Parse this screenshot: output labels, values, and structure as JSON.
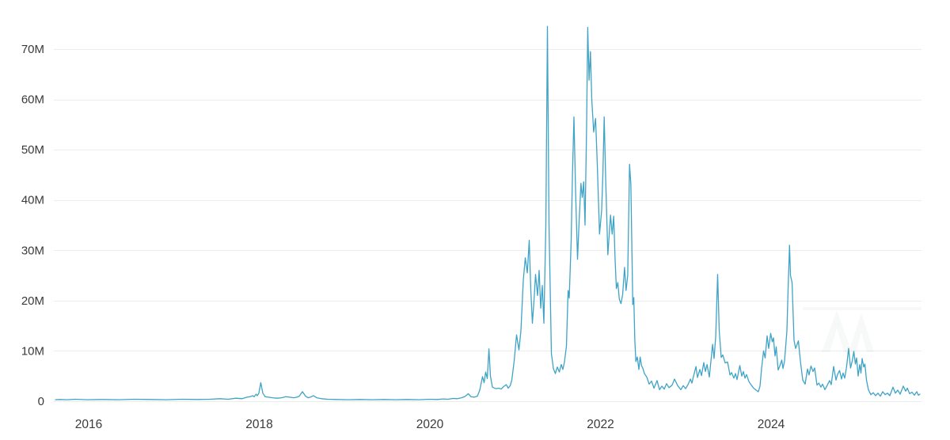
{
  "chart_data": {
    "type": "line",
    "title": "",
    "xlabel": "",
    "ylabel": "",
    "legend": "none",
    "grid": "horizontal-only",
    "xlim": [
      2015.61,
      2025.78
    ],
    "ylim": [
      0,
      74.5
    ],
    "x_ticks": {
      "values": [
        2016,
        2018,
        2020,
        2022,
        2024
      ],
      "labels": [
        "2016",
        "2018",
        "2020",
        "2022",
        "2024"
      ]
    },
    "y_ticks": {
      "values": [
        0,
        10,
        20,
        30,
        40,
        50,
        60,
        70
      ],
      "labels": [
        "0",
        "10M",
        "20M",
        "30M",
        "40M",
        "50M",
        "60M",
        "70M"
      ]
    },
    "y_unit": "millions",
    "series": [
      {
        "name": "value",
        "color": "#3fa3c6",
        "points": [
          [
            2015.61,
            0.3
          ],
          [
            2015.657,
            0.35
          ],
          [
            2015.749,
            0.3
          ],
          [
            2015.842,
            0.4
          ],
          [
            2015.981,
            0.3
          ],
          [
            2016.167,
            0.35
          ],
          [
            2016.353,
            0.3
          ],
          [
            2016.538,
            0.4
          ],
          [
            2016.724,
            0.35
          ],
          [
            2016.91,
            0.3
          ],
          [
            2017.095,
            0.4
          ],
          [
            2017.281,
            0.35
          ],
          [
            2017.42,
            0.4
          ],
          [
            2017.541,
            0.5
          ],
          [
            2017.633,
            0.4
          ],
          [
            2017.726,
            0.6
          ],
          [
            2017.8,
            0.5
          ],
          [
            2017.856,
            0.8
          ],
          [
            2017.893,
            0.9
          ],
          [
            2017.921,
            1.1
          ],
          [
            2017.94,
            0.9
          ],
          [
            2017.963,
            1.4
          ],
          [
            2017.977,
            1.1
          ],
          [
            2017.995,
            1.6
          ],
          [
            2018.018,
            3.7
          ],
          [
            2018.042,
            1.6
          ],
          [
            2018.07,
            0.9
          ],
          [
            2018.107,
            0.8
          ],
          [
            2018.153,
            0.7
          ],
          [
            2018.209,
            0.6
          ],
          [
            2018.264,
            0.7
          ],
          [
            2018.311,
            0.9
          ],
          [
            2018.357,
            0.8
          ],
          [
            2018.404,
            0.7
          ],
          [
            2018.441,
            0.8
          ],
          [
            2018.469,
            1.0
          ],
          [
            2018.506,
            1.9
          ],
          [
            2018.543,
            1.0
          ],
          [
            2018.571,
            0.7
          ],
          [
            2018.599,
            0.8
          ],
          [
            2018.636,
            1.1
          ],
          [
            2018.673,
            0.7
          ],
          [
            2018.729,
            0.5
          ],
          [
            2018.803,
            0.4
          ],
          [
            2018.905,
            0.35
          ],
          [
            2019.044,
            0.3
          ],
          [
            2019.183,
            0.35
          ],
          [
            2019.323,
            0.3
          ],
          [
            2019.462,
            0.35
          ],
          [
            2019.601,
            0.3
          ],
          [
            2019.74,
            0.35
          ],
          [
            2019.879,
            0.3
          ],
          [
            2019.991,
            0.4
          ],
          [
            2020.084,
            0.35
          ],
          [
            2020.158,
            0.45
          ],
          [
            2020.213,
            0.4
          ],
          [
            2020.269,
            0.55
          ],
          [
            2020.325,
            0.5
          ],
          [
            2020.371,
            0.7
          ],
          [
            2020.408,
            0.9
          ],
          [
            2020.45,
            1.5
          ],
          [
            2020.483,
            0.9
          ],
          [
            2020.52,
            0.8
          ],
          [
            2020.557,
            1.0
          ],
          [
            2020.585,
            2.2
          ],
          [
            2020.617,
            4.9
          ],
          [
            2020.636,
            3.7
          ],
          [
            2020.654,
            5.8
          ],
          [
            2020.673,
            4.5
          ],
          [
            2020.692,
            10.4
          ],
          [
            2020.71,
            5.0
          ],
          [
            2020.733,
            2.8
          ],
          [
            2020.77,
            2.5
          ],
          [
            2020.808,
            2.6
          ],
          [
            2020.835,
            2.4
          ],
          [
            2020.863,
            2.9
          ],
          [
            2020.896,
            3.3
          ],
          [
            2020.919,
            2.6
          ],
          [
            2020.942,
            3.1
          ],
          [
            2020.961,
            4.2
          ],
          [
            2020.988,
            8.0
          ],
          [
            2021.016,
            13.2
          ],
          [
            2021.044,
            10.2
          ],
          [
            2021.067,
            14.0
          ],
          [
            2021.095,
            24.0
          ],
          [
            2021.118,
            28.5
          ],
          [
            2021.142,
            25.5
          ],
          [
            2021.165,
            32.0
          ],
          [
            2021.183,
            22.0
          ],
          [
            2021.202,
            15.5
          ],
          [
            2021.22,
            20.0
          ],
          [
            2021.239,
            25.2
          ],
          [
            2021.262,
            21.0
          ],
          [
            2021.281,
            26.0
          ],
          [
            2021.299,
            18.5
          ],
          [
            2021.318,
            23.0
          ],
          [
            2021.336,
            15.5
          ],
          [
            2021.36,
            35.0
          ],
          [
            2021.378,
            74.5
          ],
          [
            2021.397,
            35.0
          ],
          [
            2021.425,
            9.5
          ],
          [
            2021.448,
            6.5
          ],
          [
            2021.471,
            5.5
          ],
          [
            2021.494,
            6.8
          ],
          [
            2021.517,
            5.8
          ],
          [
            2021.541,
            7.3
          ],
          [
            2021.559,
            6.3
          ],
          [
            2021.578,
            7.8
          ],
          [
            2021.601,
            11.0
          ],
          [
            2021.62,
            22.0
          ],
          [
            2021.633,
            20.5
          ],
          [
            2021.657,
            32.0
          ],
          [
            2021.671,
            45.0
          ],
          [
            2021.689,
            56.5
          ],
          [
            2021.708,
            42.0
          ],
          [
            2021.731,
            28.2
          ],
          [
            2021.75,
            36.0
          ],
          [
            2021.771,
            43.3
          ],
          [
            2021.787,
            40.5
          ],
          [
            2021.803,
            43.6
          ],
          [
            2021.819,
            35.0
          ],
          [
            2021.838,
            55.0
          ],
          [
            2021.851,
            74.3
          ],
          [
            2021.866,
            63.8
          ],
          [
            2021.882,
            69.5
          ],
          [
            2021.898,
            60.0
          ],
          [
            2021.92,
            53.5
          ],
          [
            2021.942,
            56.2
          ],
          [
            2021.963,
            47.0
          ],
          [
            2021.989,
            33.2
          ],
          [
            2022.014,
            38.0
          ],
          [
            2022.028,
            45.0
          ],
          [
            2022.044,
            56.5
          ],
          [
            2022.061,
            44.0
          ],
          [
            2022.086,
            29.1
          ],
          [
            2022.102,
            33.0
          ],
          [
            2022.118,
            37.0
          ],
          [
            2022.137,
            33.2
          ],
          [
            2022.155,
            36.8
          ],
          [
            2022.172,
            28.0
          ],
          [
            2022.187,
            22.4
          ],
          [
            2022.203,
            23.6
          ],
          [
            2022.221,
            20.3
          ],
          [
            2022.24,
            19.4
          ],
          [
            2022.26,
            21.2
          ],
          [
            2022.282,
            26.6
          ],
          [
            2022.3,
            22.0
          ],
          [
            2022.319,
            25.0
          ],
          [
            2022.341,
            47.1
          ],
          [
            2022.356,
            43.0
          ],
          [
            2022.379,
            19.2
          ],
          [
            2022.391,
            20.6
          ],
          [
            2022.403,
            12.0
          ],
          [
            2022.415,
            7.9
          ],
          [
            2022.432,
            8.8
          ],
          [
            2022.45,
            6.3
          ],
          [
            2022.465,
            8.8
          ],
          [
            2022.481,
            7.1
          ],
          [
            2022.497,
            6.5
          ],
          [
            2022.515,
            5.5
          ],
          [
            2022.543,
            4.8
          ],
          [
            2022.571,
            3.4
          ],
          [
            2022.599,
            4.0
          ],
          [
            2022.627,
            2.6
          ],
          [
            2022.664,
            4.1
          ],
          [
            2022.692,
            2.3
          ],
          [
            2022.72,
            3.0
          ],
          [
            2022.747,
            2.4
          ],
          [
            2022.775,
            3.5
          ],
          [
            2022.803,
            2.7
          ],
          [
            2022.84,
            3.2
          ],
          [
            2022.868,
            4.4
          ],
          [
            2022.905,
            3.1
          ],
          [
            2022.942,
            2.3
          ],
          [
            2022.97,
            3.1
          ],
          [
            2022.998,
            2.5
          ],
          [
            2023.026,
            3.3
          ],
          [
            2023.054,
            4.4
          ],
          [
            2023.072,
            3.6
          ],
          [
            2023.091,
            5.0
          ],
          [
            2023.119,
            6.9
          ],
          [
            2023.137,
            4.7
          ],
          [
            2023.165,
            6.3
          ],
          [
            2023.184,
            5.1
          ],
          [
            2023.211,
            7.7
          ],
          [
            2023.23,
            5.9
          ],
          [
            2023.249,
            7.3
          ],
          [
            2023.276,
            4.8
          ],
          [
            2023.314,
            11.3
          ],
          [
            2023.332,
            8.5
          ],
          [
            2023.351,
            13.0
          ],
          [
            2023.374,
            25.2
          ],
          [
            2023.392,
            14.0
          ],
          [
            2023.415,
            8.7
          ],
          [
            2023.434,
            9.2
          ],
          [
            2023.462,
            7.6
          ],
          [
            2023.49,
            7.8
          ],
          [
            2023.518,
            5.2
          ],
          [
            2023.536,
            5.7
          ],
          [
            2023.564,
            4.6
          ],
          [
            2023.582,
            5.5
          ],
          [
            2023.601,
            4.3
          ],
          [
            2023.633,
            7.1
          ],
          [
            2023.657,
            5.0
          ],
          [
            2023.675,
            5.9
          ],
          [
            2023.694,
            4.6
          ],
          [
            2023.712,
            5.3
          ],
          [
            2023.74,
            3.9
          ],
          [
            2023.768,
            3.2
          ],
          [
            2023.796,
            2.6
          ],
          [
            2023.824,
            2.2
          ],
          [
            2023.851,
            1.9
          ],
          [
            2023.87,
            3.0
          ],
          [
            2023.889,
            6.5
          ],
          [
            2023.912,
            10.0
          ],
          [
            2023.93,
            8.6
          ],
          [
            2023.954,
            13.0
          ],
          [
            2023.972,
            10.5
          ],
          [
            2023.995,
            13.5
          ],
          [
            2024.014,
            11.8
          ],
          [
            2024.028,
            12.6
          ],
          [
            2024.046,
            9.0
          ],
          [
            2024.06,
            10.8
          ],
          [
            2024.083,
            6.2
          ],
          [
            2024.102,
            7.0
          ],
          [
            2024.125,
            8.2
          ],
          [
            2024.139,
            6.5
          ],
          [
            2024.158,
            8.0
          ],
          [
            2024.186,
            14.0
          ],
          [
            2024.2,
            22.8
          ],
          [
            2024.216,
            31.0
          ],
          [
            2024.227,
            25.0
          ],
          [
            2024.246,
            23.6
          ],
          [
            2024.269,
            12.1
          ],
          [
            2024.288,
            10.5
          ],
          [
            2024.32,
            12.0
          ],
          [
            2024.343,
            8.0
          ],
          [
            2024.371,
            4.2
          ],
          [
            2024.399,
            3.4
          ],
          [
            2024.427,
            6.4
          ],
          [
            2024.445,
            5.2
          ],
          [
            2024.468,
            7.0
          ],
          [
            2024.492,
            5.9
          ],
          [
            2024.51,
            6.6
          ],
          [
            2024.538,
            3.2
          ],
          [
            2024.561,
            3.6
          ],
          [
            2024.584,
            2.8
          ],
          [
            2024.603,
            3.4
          ],
          [
            2024.631,
            2.3
          ],
          [
            2024.659,
            3.2
          ],
          [
            2024.686,
            4.1
          ],
          [
            2024.705,
            3.3
          ],
          [
            2024.733,
            6.9
          ],
          [
            2024.761,
            4.2
          ],
          [
            2024.779,
            5.3
          ],
          [
            2024.803,
            6.1
          ],
          [
            2024.826,
            4.4
          ],
          [
            2024.844,
            5.6
          ],
          [
            2024.863,
            4.6
          ],
          [
            2024.886,
            7.0
          ],
          [
            2024.909,
            10.5
          ],
          [
            2024.932,
            6.6
          ],
          [
            2024.951,
            8.0
          ],
          [
            2024.97,
            9.9
          ],
          [
            2024.988,
            7.4
          ],
          [
            2025.002,
            8.6
          ],
          [
            2025.021,
            5.0
          ],
          [
            2025.039,
            7.3
          ],
          [
            2025.053,
            5.6
          ],
          [
            2025.067,
            8.5
          ],
          [
            2025.086,
            6.8
          ],
          [
            2025.1,
            7.4
          ],
          [
            2025.118,
            4.2
          ],
          [
            2025.141,
            2.3
          ],
          [
            2025.169,
            1.3
          ],
          [
            2025.197,
            1.7
          ],
          [
            2025.225,
            1.1
          ],
          [
            2025.253,
            1.6
          ],
          [
            2025.281,
            1.0
          ],
          [
            2025.309,
            1.9
          ],
          [
            2025.337,
            1.3
          ],
          [
            2025.364,
            1.6
          ],
          [
            2025.392,
            1.1
          ],
          [
            2025.429,
            2.8
          ],
          [
            2025.457,
            1.6
          ],
          [
            2025.485,
            2.2
          ],
          [
            2025.513,
            1.4
          ],
          [
            2025.55,
            3.0
          ],
          [
            2025.578,
            2.0
          ],
          [
            2025.597,
            2.6
          ],
          [
            2025.624,
            1.5
          ],
          [
            2025.652,
            1.8
          ],
          [
            2025.68,
            1.2
          ],
          [
            2025.708,
            1.9
          ],
          [
            2025.726,
            1.2
          ],
          [
            2025.745,
            1.4
          ]
        ]
      }
    ]
  },
  "style": {
    "background": "#ffffff",
    "gridline_color": "#ececec",
    "axis_label_color": "#3a3a3a",
    "watermark_color": "#6e7f8a"
  }
}
